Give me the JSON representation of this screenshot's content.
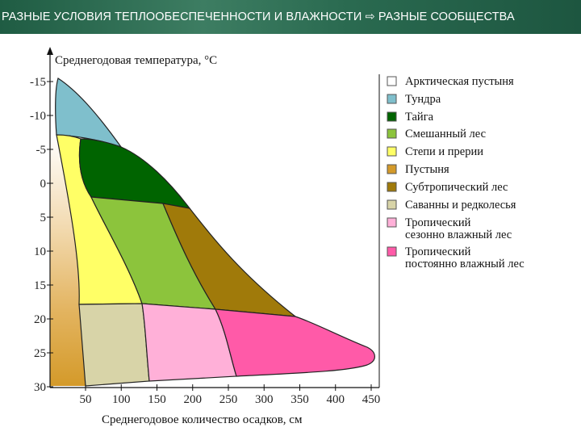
{
  "header": {
    "title": "РАЗНЫЕ УСЛОВИЯ ТЕПЛООБЕСПЕЧЕННОСТИ И ВЛАЖНОСТИ ⇨ РАЗНЫЕ СООБЩЕСТВА"
  },
  "diagram": {
    "y_axis_title": "Среднегодовая температура, °С",
    "x_axis_title": "Среднегодовое количество осадков, см",
    "y_ticks": [
      "-15",
      "-10",
      "-5",
      "0",
      "5",
      "10",
      "15",
      "20",
      "25",
      "30"
    ],
    "x_ticks": [
      "50",
      "100",
      "150",
      "200",
      "250",
      "300",
      "350",
      "400",
      "450"
    ]
  },
  "legend": [
    {
      "id": "arctic-desert",
      "lines": [
        "Арктическая пустыня"
      ],
      "color": "#ffffff"
    },
    {
      "id": "tundra",
      "lines": [
        "Тундра"
      ],
      "color": "#7fbfcc"
    },
    {
      "id": "taiga",
      "lines": [
        "Тайга"
      ],
      "color": "#006400"
    },
    {
      "id": "mixed-forest",
      "lines": [
        "Смешанный лес"
      ],
      "color": "#8cc43c"
    },
    {
      "id": "steppe",
      "lines": [
        "Степи и прерии"
      ],
      "color": "#ffff66"
    },
    {
      "id": "desert",
      "lines": [
        "Пустыня"
      ],
      "color": "#d49a2a"
    },
    {
      "id": "subtropical-forest",
      "lines": [
        "Субтропический лес"
      ],
      "color": "#a07a0a"
    },
    {
      "id": "savanna",
      "lines": [
        "Саванны и редколесья"
      ],
      "color": "#d8d4a8"
    },
    {
      "id": "tropical-seasonal",
      "lines": [
        "Тропический",
        "сезонно влажный лес"
      ],
      "color": "#ffb0d8"
    },
    {
      "id": "tropical-rainforest",
      "lines": [
        "Тропический",
        "постоянно влажный лес"
      ],
      "color": "#ff5aa8"
    }
  ]
}
